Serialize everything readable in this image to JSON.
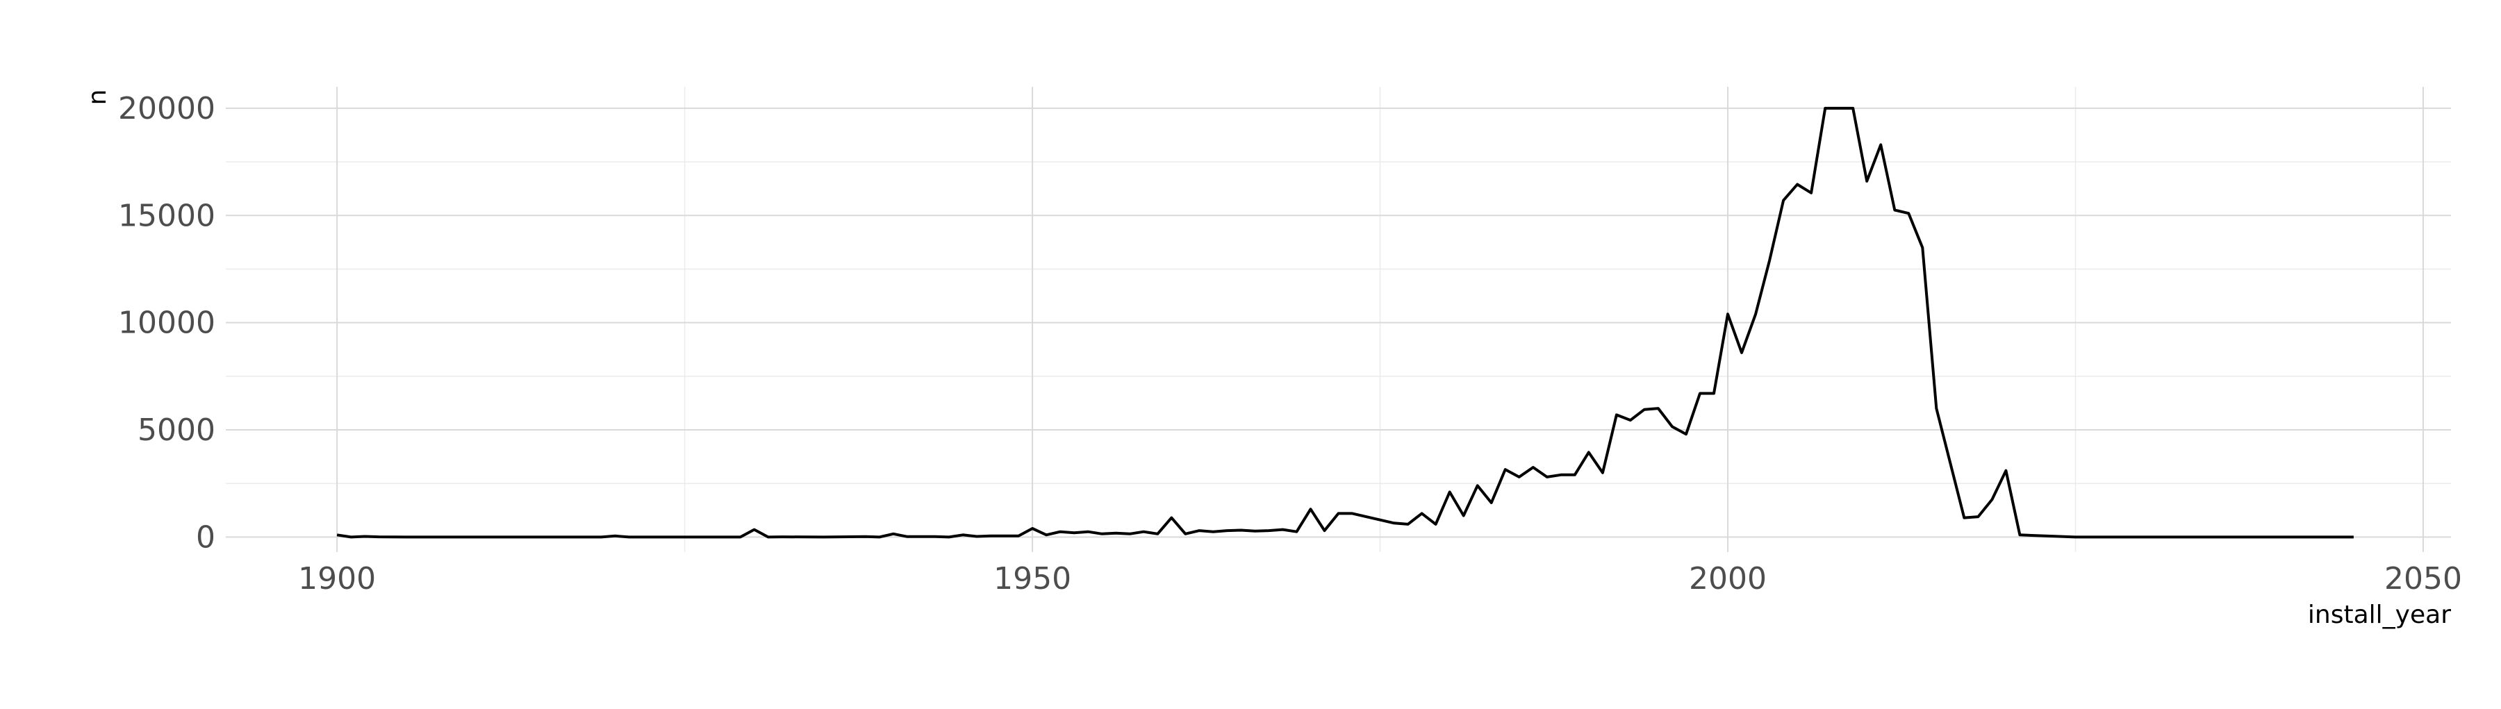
{
  "chart_data": {
    "type": "line",
    "title": "",
    "xlabel": "install_year",
    "ylabel": "n",
    "xlim": [
      1892,
      2052
    ],
    "ylim": [
      -700,
      21000
    ],
    "x_ticks": [
      1900,
      1950,
      2000,
      2050
    ],
    "x_minor_ticks": [
      1925,
      1975,
      2025
    ],
    "y_ticks": [
      0,
      5000,
      10000,
      15000,
      20000
    ],
    "y_minor_ticks": [
      2500,
      7500,
      12500,
      17500
    ],
    "grid": true,
    "legend": "none",
    "line_color": "#000000",
    "series": [
      {
        "x": [
          1900,
          1901,
          1902,
          1903,
          1905,
          1910,
          1915,
          1919,
          1920,
          1921,
          1925,
          1929,
          1930,
          1931,
          1932,
          1935,
          1938,
          1939,
          1940,
          1941,
          1943,
          1944,
          1945,
          1946,
          1947,
          1949,
          1950,
          1951,
          1952,
          1953,
          1954,
          1955,
          1956,
          1957,
          1958,
          1959,
          1960,
          1961,
          1962,
          1963,
          1964,
          1965,
          1966,
          1967,
          1968,
          1969,
          1970,
          1971,
          1972,
          1973,
          1974,
          1975,
          1976,
          1977,
          1978,
          1979,
          1980,
          1981,
          1982,
          1983,
          1984,
          1985,
          1986,
          1987,
          1988,
          1989,
          1990,
          1991,
          1992,
          1993,
          1994,
          1995,
          1996,
          1997,
          1998,
          1999,
          2000,
          2001,
          2002,
          2003,
          2004,
          2005,
          2006,
          2007,
          2008,
          2009,
          2010,
          2011,
          2012,
          2013,
          2014,
          2015,
          2016,
          2017,
          2018,
          2019,
          2020,
          2021,
          2025,
          2030,
          2040,
          2045
        ],
        "y": [
          100,
          0,
          30,
          10,
          0,
          0,
          0,
          0,
          50,
          0,
          0,
          0,
          350,
          0,
          10,
          0,
          20,
          0,
          150,
          20,
          20,
          0,
          100,
          30,
          50,
          50,
          400,
          100,
          250,
          200,
          250,
          150,
          180,
          150,
          250,
          150,
          900,
          150,
          300,
          250,
          300,
          320,
          280,
          300,
          350,
          250,
          1300,
          300,
          1100,
          1100,
          950,
          800,
          650,
          600,
          1100,
          600,
          2100,
          1000,
          2400,
          1600,
          3150,
          2800,
          3250,
          2800,
          2900,
          2900,
          3950,
          3000,
          5700,
          5450,
          5950,
          6000,
          5150,
          4800,
          6700,
          6700,
          10400,
          8600,
          10400,
          12900,
          15700,
          16450,
          16050,
          20000,
          20000,
          20000,
          16600,
          18300,
          15250,
          15100,
          13500,
          6000,
          3450,
          900,
          950,
          1750,
          3100,
          100,
          0,
          0,
          0,
          0
        ]
      }
    ]
  }
}
